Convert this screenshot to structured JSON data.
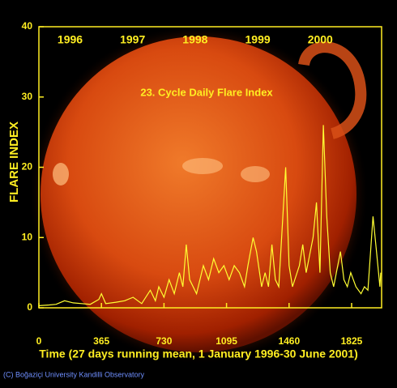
{
  "chart_data": {
    "type": "line",
    "title": "23. Cycle Daily Flare Index",
    "xlabel": "Time (27 days running mean, 1 January 1996-30 June 2001)",
    "ylabel": "FLARE INDEX",
    "annotations": [
      "1996",
      "1997",
      "1998",
      "1999",
      "2000"
    ],
    "credit": "(C) Boğaziçi University Kandilli Observatory",
    "color": "#ffff33",
    "x": [
      0,
      60,
      100,
      150,
      200,
      250,
      300,
      350,
      365,
      390,
      450,
      500,
      550,
      600,
      650,
      680,
      700,
      730,
      760,
      790,
      820,
      840,
      860,
      880,
      920,
      960,
      990,
      1020,
      1050,
      1080,
      1110,
      1140,
      1170,
      1200,
      1220,
      1250,
      1270,
      1300,
      1320,
      1340,
      1360,
      1380,
      1400,
      1440,
      1460,
      1480,
      1520,
      1540,
      1560,
      1600,
      1620,
      1640,
      1660,
      1680,
      1700,
      1720,
      1760,
      1780,
      1800,
      1820,
      1850,
      1880,
      1900,
      1920,
      1950,
      1970,
      1990,
      1995
    ],
    "values": [
      0.3,
      0.4,
      0.5,
      1,
      0.7,
      0.6,
      0.5,
      1.2,
      2,
      0.6,
      0.8,
      1,
      1.5,
      0.6,
      2.5,
      1,
      3,
      1.5,
      4,
      2,
      5,
      3,
      9,
      4,
      2,
      6,
      4,
      7,
      5,
      6,
      4,
      6,
      5,
      3,
      6,
      10,
      8,
      3,
      5,
      3,
      9,
      4,
      3,
      20,
      6,
      3,
      6,
      9,
      5,
      10,
      15,
      5,
      26,
      13,
      5,
      3,
      8,
      4,
      3,
      5,
      3,
      2,
      3,
      2.5,
      13,
      8,
      3,
      5
    ],
    "xlim": [
      0,
      2000
    ],
    "ylim": [
      0,
      40
    ],
    "xticks": [
      0,
      365,
      730,
      1095,
      1460,
      1825
    ],
    "yticks": [
      0,
      10,
      20,
      30,
      40
    ]
  }
}
